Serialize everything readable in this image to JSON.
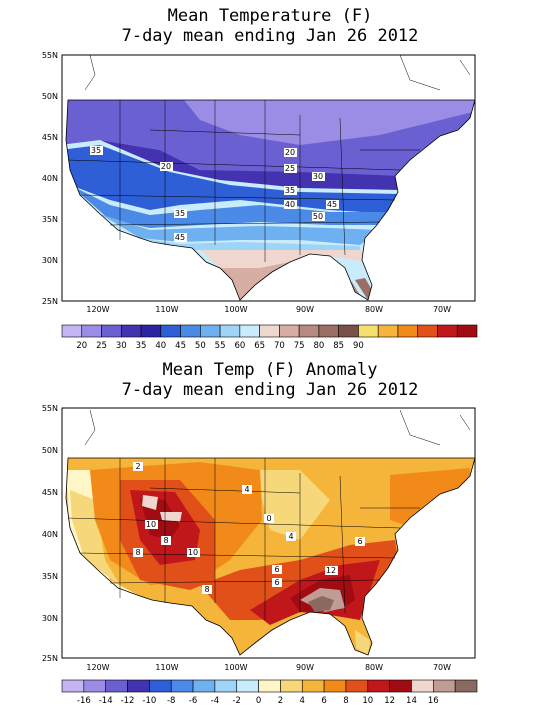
{
  "map1": {
    "title": "Mean Temperature (F)",
    "subtitle": "7-day mean ending Jan 26 2012",
    "lat_labels": [
      "55N",
      "50N",
      "45N",
      "40N",
      "35N",
      "30N",
      "25N"
    ],
    "lon_labels": [
      "120W",
      "110W",
      "100W",
      "90W",
      "80W",
      "70W"
    ],
    "contour_labels": [
      "35",
      "20",
      "20",
      "25",
      "30",
      "35",
      "40",
      "45",
      "50",
      "35",
      "45"
    ],
    "colorbar": {
      "colors": [
        "#c4b4f2",
        "#9b8de6",
        "#6a60d2",
        "#4433b0",
        "#2c24a3",
        "#2e5fd6",
        "#4b8ae6",
        "#6fb0f0",
        "#9ed4f6",
        "#c8ecfb",
        "#efd6cf",
        "#d6aea3",
        "#b88a80",
        "#9b6e63",
        "#7a5048",
        "#f6e06e",
        "#f5b43a",
        "#f28a1a",
        "#e2501a",
        "#c0171b",
        "#a00c12"
      ],
      "labels": [
        "20",
        "25",
        "30",
        "35",
        "40",
        "45",
        "50",
        "55",
        "60",
        "65",
        "70",
        "75",
        "80",
        "85",
        "90"
      ]
    }
  },
  "map2": {
    "title": "Mean Temp (F) Anomaly",
    "subtitle": "7-day mean ending Jan 26 2012",
    "lat_labels": [
      "55N",
      "50N",
      "45N",
      "40N",
      "35N",
      "30N",
      "25N"
    ],
    "lon_labels": [
      "120W",
      "110W",
      "100W",
      "90W",
      "80W",
      "70W"
    ],
    "contour_labels": [
      "2",
      "4",
      "10",
      "8",
      "10",
      "8",
      "4",
      "6",
      "8",
      "12",
      "0",
      "6",
      "6"
    ],
    "colorbar": {
      "colors": [
        "#c4b4f2",
        "#9b8de6",
        "#6a60d2",
        "#4433b0",
        "#2e5fd6",
        "#4b8ae6",
        "#6fb0f0",
        "#9ed4f6",
        "#c8ecfb",
        "#fff6c8",
        "#f6d77a",
        "#f5b43a",
        "#f28a1a",
        "#e2501a",
        "#c0171b",
        "#a00c12",
        "#efd6cf",
        "#c09c95",
        "#8a6a60"
      ],
      "labels": [
        "-16",
        "-14",
        "-12",
        "-10",
        "-8",
        "-6",
        "-4",
        "-2",
        "0",
        "2",
        "4",
        "6",
        "8",
        "10",
        "12",
        "14",
        "16"
      ]
    }
  },
  "colors": {
    "frame": "#000000",
    "background": "#ffffff"
  }
}
